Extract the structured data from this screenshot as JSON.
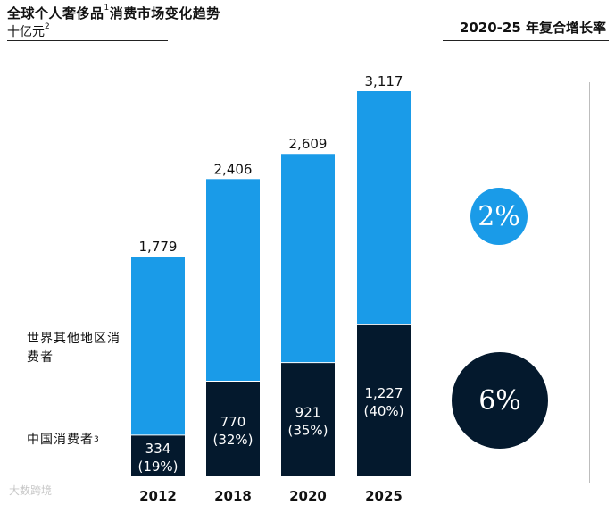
{
  "header": {
    "title": "全球个人奢侈品",
    "title_sup": "1",
    "title_tail": "消费市场变化趋势",
    "subtitle": "十亿元",
    "subtitle_sup": "2",
    "cagr_header": "2020-25 年复合增长率"
  },
  "legend": {
    "world_label": "世界其他地区消费者",
    "china_label": "中国消费者",
    "china_sup": "3"
  },
  "cagr": {
    "world": "2%",
    "china": "6%"
  },
  "watermark": "大数跨境",
  "colors": {
    "world": "#1a9be8",
    "china": "#04192d"
  },
  "chart_data": {
    "type": "bar",
    "stacked": true,
    "title": "全球个人奢侈品消费市场变化趋势",
    "ylabel": "十亿元",
    "categories": [
      "2012",
      "2018",
      "2020",
      "2025"
    ],
    "totals": [
      1779,
      2406,
      2609,
      3117
    ],
    "total_labels": [
      "1,779",
      "2,406",
      "2,609",
      "3,117"
    ],
    "series": [
      {
        "name": "中国消费者",
        "values": [
          334,
          770,
          921,
          1227
        ],
        "labels": [
          "334",
          "770",
          "921",
          "1,227"
        ],
        "shares": [
          "(19%)",
          "(32%)",
          "(35%)",
          "(40%)"
        ]
      },
      {
        "name": "世界其他地区消费者",
        "values": [
          1445,
          1636,
          1688,
          1890
        ]
      }
    ],
    "ylim": [
      0,
      3117
    ]
  }
}
